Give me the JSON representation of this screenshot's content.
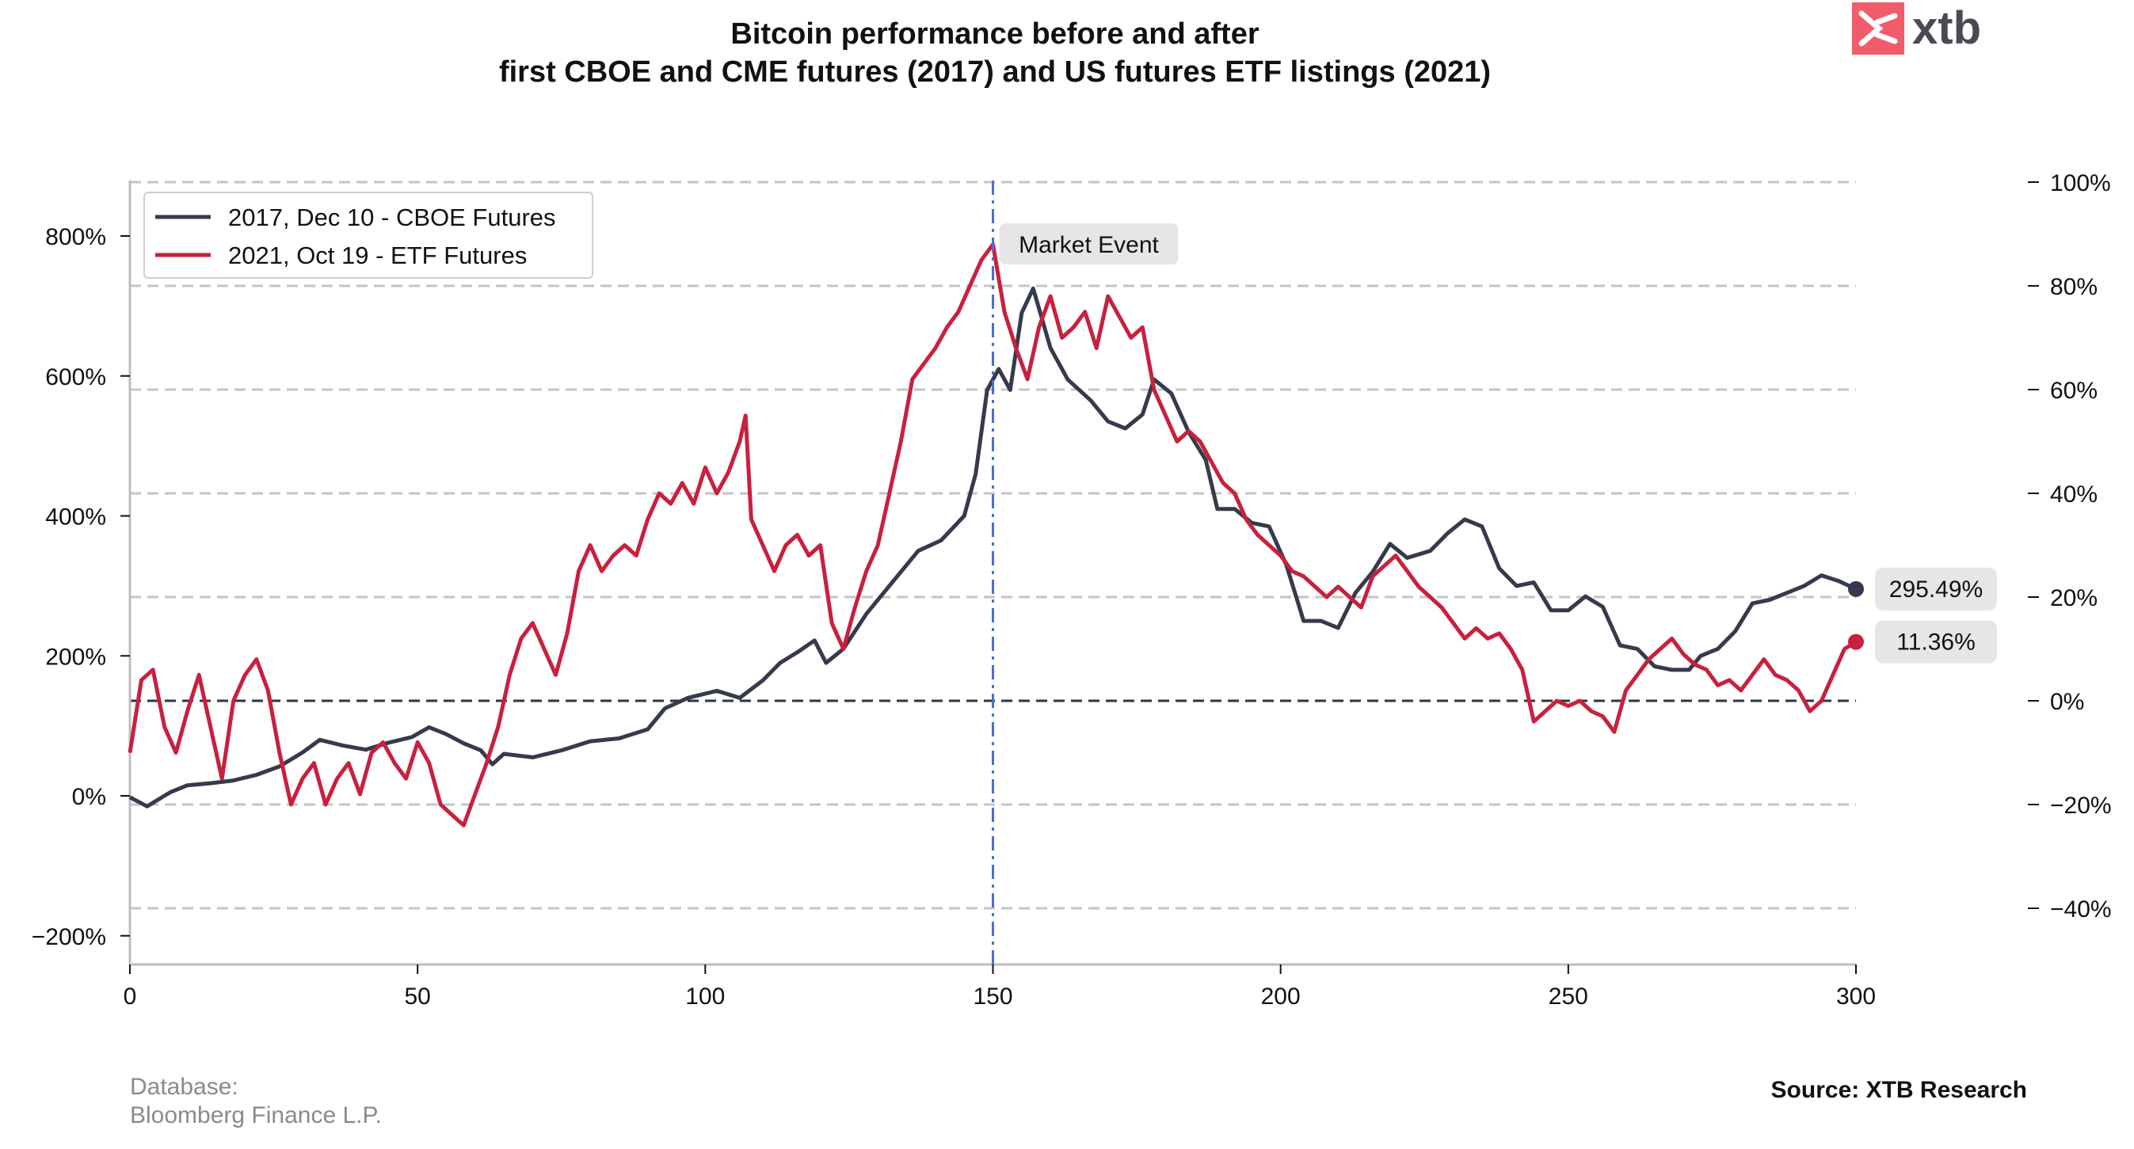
{
  "chart_data": {
    "type": "line",
    "title": "Bitcoin performance before and after",
    "subtitle": "first CBOE and CME futures (2017) and US futures ETF listings (2021)",
    "xlim": [
      0,
      300
    ],
    "x_ticks": [
      "0",
      "50",
      "100",
      "150",
      "200",
      "250",
      "300"
    ],
    "y_left_ticks": [
      "800%",
      "600%",
      "400%",
      "200%",
      "0%",
      "−200%"
    ],
    "y_right_ticks": [
      "100%",
      "80%",
      "60%",
      "40%",
      "20%",
      "0%",
      "−20%",
      "−40%"
    ],
    "y_left_lim": [
      -240,
      880
    ],
    "y_right_lim": [
      -50,
      100
    ],
    "grid": "horizontal dashed",
    "legend_placement": "top-left",
    "baseline_right": 0,
    "event_line": {
      "x": 150,
      "label": "Market Event"
    },
    "colors": {
      "s2017": "#353a4c",
      "s2021": "#c8203e",
      "event": "#4a6fd0",
      "baseline": "#2c3446",
      "grid": "#c4c4c4"
    },
    "series": [
      {
        "name": "2017, Dec 10 - CBOE Futures",
        "axis": "left",
        "end_label": "295.49%",
        "points": [
          [
            0,
            -2
          ],
          [
            3,
            -15
          ],
          [
            5,
            -5
          ],
          [
            7,
            5
          ],
          [
            10,
            15
          ],
          [
            14,
            18
          ],
          [
            18,
            22
          ],
          [
            22,
            30
          ],
          [
            26,
            42
          ],
          [
            30,
            62
          ],
          [
            33,
            80
          ],
          [
            37,
            72
          ],
          [
            41,
            66
          ],
          [
            45,
            76
          ],
          [
            49,
            84
          ],
          [
            52,
            98
          ],
          [
            55,
            88
          ],
          [
            58,
            75
          ],
          [
            61,
            65
          ],
          [
            63,
            45
          ],
          [
            65,
            60
          ],
          [
            70,
            55
          ],
          [
            75,
            65
          ],
          [
            80,
            78
          ],
          [
            85,
            82
          ],
          [
            90,
            95
          ],
          [
            93,
            125
          ],
          [
            97,
            140
          ],
          [
            102,
            150
          ],
          [
            106,
            140
          ],
          [
            110,
            165
          ],
          [
            113,
            190
          ],
          [
            116,
            205
          ],
          [
            119,
            222
          ],
          [
            121,
            190
          ],
          [
            124,
            210
          ],
          [
            128,
            260
          ],
          [
            131,
            290
          ],
          [
            134,
            320
          ],
          [
            137,
            350
          ],
          [
            141,
            365
          ],
          [
            145,
            400
          ],
          [
            147,
            460
          ],
          [
            149,
            580
          ],
          [
            151,
            610
          ],
          [
            153,
            580
          ],
          [
            155,
            690
          ],
          [
            157,
            725
          ],
          [
            160,
            640
          ],
          [
            163,
            595
          ],
          [
            167,
            565
          ],
          [
            170,
            535
          ],
          [
            173,
            525
          ],
          [
            176,
            545
          ],
          [
            178,
            595
          ],
          [
            181,
            575
          ],
          [
            184,
            520
          ],
          [
            187,
            480
          ],
          [
            189,
            410
          ],
          [
            192,
            410
          ],
          [
            195,
            390
          ],
          [
            198,
            385
          ],
          [
            201,
            330
          ],
          [
            204,
            250
          ],
          [
            207,
            250
          ],
          [
            210,
            240
          ],
          [
            213,
            290
          ],
          [
            216,
            320
          ],
          [
            219,
            360
          ],
          [
            222,
            340
          ],
          [
            226,
            350
          ],
          [
            229,
            375
          ],
          [
            232,
            395
          ],
          [
            235,
            385
          ],
          [
            238,
            325
          ],
          [
            241,
            300
          ],
          [
            244,
            305
          ],
          [
            247,
            265
          ],
          [
            250,
            265
          ],
          [
            253,
            285
          ],
          [
            256,
            270
          ],
          [
            259,
            215
          ],
          [
            262,
            210
          ],
          [
            265,
            185
          ],
          [
            268,
            180
          ],
          [
            271,
            180
          ],
          [
            273,
            200
          ],
          [
            276,
            210
          ],
          [
            279,
            235
          ],
          [
            282,
            275
          ],
          [
            285,
            280
          ],
          [
            288,
            290
          ],
          [
            291,
            300
          ],
          [
            294,
            315
          ],
          [
            297,
            307
          ],
          [
            300,
            295.49
          ]
        ]
      },
      {
        "name": "2021, Oct 19 - ETF Futures",
        "axis": "right",
        "end_label": "11.36%",
        "points": [
          [
            0,
            -10
          ],
          [
            2,
            4
          ],
          [
            4,
            6
          ],
          [
            6,
            -5
          ],
          [
            8,
            -10
          ],
          [
            10,
            -2
          ],
          [
            12,
            5
          ],
          [
            14,
            -5
          ],
          [
            16,
            -15
          ],
          [
            18,
            0
          ],
          [
            20,
            5
          ],
          [
            22,
            8
          ],
          [
            24,
            2
          ],
          [
            26,
            -10
          ],
          [
            28,
            -20
          ],
          [
            30,
            -15
          ],
          [
            32,
            -12
          ],
          [
            34,
            -20
          ],
          [
            36,
            -15
          ],
          [
            38,
            -12
          ],
          [
            40,
            -18
          ],
          [
            42,
            -10
          ],
          [
            44,
            -8
          ],
          [
            46,
            -12
          ],
          [
            48,
            -15
          ],
          [
            50,
            -8
          ],
          [
            52,
            -12
          ],
          [
            54,
            -20
          ],
          [
            56,
            -22
          ],
          [
            58,
            -24
          ],
          [
            60,
            -18
          ],
          [
            62,
            -12
          ],
          [
            64,
            -5
          ],
          [
            66,
            5
          ],
          [
            68,
            12
          ],
          [
            70,
            15
          ],
          [
            72,
            10
          ],
          [
            74,
            5
          ],
          [
            76,
            13
          ],
          [
            78,
            25
          ],
          [
            80,
            30
          ],
          [
            82,
            25
          ],
          [
            84,
            28
          ],
          [
            86,
            30
          ],
          [
            88,
            28
          ],
          [
            90,
            35
          ],
          [
            92,
            40
          ],
          [
            94,
            38
          ],
          [
            96,
            42
          ],
          [
            98,
            38
          ],
          [
            100,
            45
          ],
          [
            102,
            40
          ],
          [
            104,
            44
          ],
          [
            106,
            50
          ],
          [
            107,
            55
          ],
          [
            108,
            35
          ],
          [
            110,
            30
          ],
          [
            112,
            25
          ],
          [
            114,
            30
          ],
          [
            116,
            32
          ],
          [
            118,
            28
          ],
          [
            120,
            30
          ],
          [
            122,
            15
          ],
          [
            124,
            10
          ],
          [
            126,
            18
          ],
          [
            128,
            25
          ],
          [
            130,
            30
          ],
          [
            132,
            40
          ],
          [
            134,
            50
          ],
          [
            136,
            62
          ],
          [
            138,
            65
          ],
          [
            140,
            68
          ],
          [
            142,
            72
          ],
          [
            144,
            75
          ],
          [
            146,
            80
          ],
          [
            148,
            85
          ],
          [
            150,
            88
          ],
          [
            152,
            75
          ],
          [
            154,
            68
          ],
          [
            156,
            62
          ],
          [
            158,
            72
          ],
          [
            160,
            78
          ],
          [
            162,
            70
          ],
          [
            164,
            72
          ],
          [
            166,
            75
          ],
          [
            168,
            68
          ],
          [
            170,
            78
          ],
          [
            172,
            74
          ],
          [
            174,
            70
          ],
          [
            176,
            72
          ],
          [
            178,
            60
          ],
          [
            180,
            55
          ],
          [
            182,
            50
          ],
          [
            184,
            52
          ],
          [
            186,
            50
          ],
          [
            188,
            46
          ],
          [
            190,
            42
          ],
          [
            192,
            40
          ],
          [
            194,
            35
          ],
          [
            196,
            32
          ],
          [
            198,
            30
          ],
          [
            200,
            28
          ],
          [
            202,
            25
          ],
          [
            204,
            24
          ],
          [
            206,
            22
          ],
          [
            208,
            20
          ],
          [
            210,
            22
          ],
          [
            212,
            20
          ],
          [
            214,
            18
          ],
          [
            216,
            24
          ],
          [
            218,
            26
          ],
          [
            220,
            28
          ],
          [
            222,
            25
          ],
          [
            224,
            22
          ],
          [
            226,
            20
          ],
          [
            228,
            18
          ],
          [
            230,
            15
          ],
          [
            232,
            12
          ],
          [
            234,
            14
          ],
          [
            236,
            12
          ],
          [
            238,
            13
          ],
          [
            240,
            10
          ],
          [
            242,
            6
          ],
          [
            244,
            -4
          ],
          [
            246,
            -2
          ],
          [
            248,
            0
          ],
          [
            250,
            -1
          ],
          [
            252,
            0
          ],
          [
            254,
            -2
          ],
          [
            256,
            -3
          ],
          [
            258,
            -6
          ],
          [
            260,
            2
          ],
          [
            262,
            5
          ],
          [
            264,
            8
          ],
          [
            266,
            10
          ],
          [
            268,
            12
          ],
          [
            270,
            9
          ],
          [
            272,
            7
          ],
          [
            274,
            6
          ],
          [
            276,
            3
          ],
          [
            278,
            4
          ],
          [
            280,
            2
          ],
          [
            282,
            5
          ],
          [
            284,
            8
          ],
          [
            286,
            5
          ],
          [
            288,
            4
          ],
          [
            290,
            2
          ],
          [
            292,
            -2
          ],
          [
            294,
            0
          ],
          [
            296,
            5
          ],
          [
            298,
            10
          ],
          [
            300,
            11.36
          ]
        ]
      }
    ]
  },
  "footer": {
    "database_label": "Database:",
    "database_value": "Bloomberg Finance L.P.",
    "source": "Source: XTB Research"
  },
  "logo": {
    "text": "xtb",
    "color": "#f25c6a"
  }
}
